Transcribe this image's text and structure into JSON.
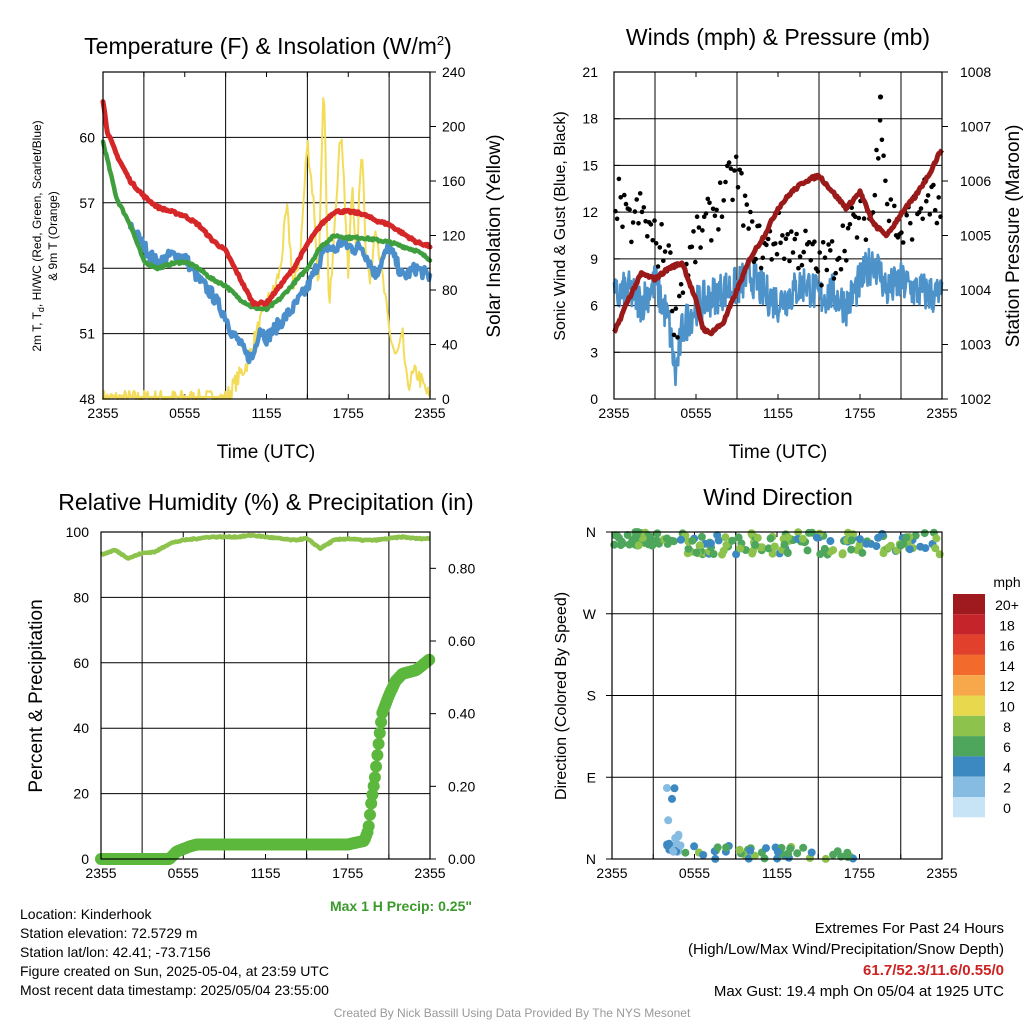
{
  "panels": {
    "temperature": {
      "title": "Temperature (F) & Insolation (W/m",
      "title_sup": "2",
      "title_close": ")",
      "ylabel_left": "2m T, T",
      "ylabel_left_sub": "d",
      "ylabel_left_rest": ", HI/WC (Red, Green, Scarlet/Blue)",
      "ylabel_left_line2": "& 9m T (Orange)",
      "ylabel_right": "Solar Insolation (Yellow)",
      "xlabel": "Time (UTC)"
    },
    "winds": {
      "title": "Winds (mph) & Pressure (mb)",
      "ylabel_left": "Sonic Wind & Gust (Blue, Black)",
      "ylabel_right": "Station Pressure (Maroon)",
      "xlabel": "Time (UTC)"
    },
    "humidity": {
      "title": "Relative Humidity (%) & Precipitation (in)",
      "ylabel_left": "Percent & Precipitation",
      "annotation": "Max 1 H Precip: 0.25\""
    },
    "direction": {
      "title": "Wind Direction",
      "ylabel_left": "Direction (Colored By Speed)",
      "legend_title": "mph",
      "legend_labels": [
        "20+",
        "18",
        "16",
        "14",
        "12",
        "10",
        "8",
        "6",
        "4",
        "2",
        "0"
      ],
      "legend_colors": [
        "#9e1a1f",
        "#c4242a",
        "#e0402c",
        "#f26a2c",
        "#f7a84a",
        "#e8d84e",
        "#8dc24c",
        "#4ea55c",
        "#3c88c0",
        "#86bbe2",
        "#c6e4f6"
      ]
    }
  },
  "info": {
    "location": "Location: Kinderhook",
    "elevation": "Station elevation: 72.5729 m",
    "latlon": "Station lat/lon: 42.41; -73.7156",
    "created": "Figure created on Sun, 2025-05-04, at 23:59 UTC",
    "recent": "Most recent data timestamp: 2025/05/04 23:55:00",
    "extremes_title": "Extremes For Past 24 Hours",
    "extremes_sub": "(High/Low/Max Wind/Precipitation/Snow Depth)",
    "extremes_values": "61.7/52.3/11.6/0.55/0",
    "max_gust": "Max Gust: 19.4 mph On 05/04 at 1925 UTC",
    "credit": "Created By Nick Bassill Using Data Provided By The NYS Mesonet"
  },
  "colors": {
    "temperature": "#d62728",
    "dewpoint": "#3f9f3f",
    "heat_index_wc": "#4a8fcb",
    "temp_9m": "#f08030",
    "insolation": "#f2dc5a",
    "wind": "#4d92c9",
    "gust": "#000000",
    "pressure": "#9a1a1a",
    "rh": "#8dc24c",
    "precip": "#5cb83c",
    "annotation": "#3a9a2a"
  },
  "chart_data": [
    {
      "type": "line",
      "title": "Temperature (F) & Insolation (W/m2)",
      "xlabel": "Time (UTC)",
      "x_ticks": [
        "2355",
        "0555",
        "1155",
        "1755",
        "2355"
      ],
      "x_range_hours": [
        0,
        24
      ],
      "ylim": [
        48,
        63
      ],
      "y_ticks": [
        48,
        51,
        54,
        57,
        60
      ],
      "y2lim": [
        0,
        240
      ],
      "y2_ticks": [
        0,
        40,
        80,
        120,
        160,
        200,
        240
      ],
      "series": [
        {
          "name": "2m T (Red)",
          "axis": "left",
          "x": [
            0,
            0.3,
            1,
            2,
            3,
            4,
            5,
            6,
            7,
            8,
            9,
            10,
            11,
            12,
            13,
            14,
            15,
            16,
            17,
            18,
            19,
            20,
            21,
            22,
            23,
            24
          ],
          "values": [
            61.7,
            60.3,
            59.2,
            58.0,
            57.3,
            56.8,
            56.6,
            56.4,
            56.0,
            55.3,
            54.8,
            53.6,
            52.4,
            52.4,
            53.2,
            54.0,
            55.1,
            56.0,
            56.6,
            56.6,
            56.5,
            56.2,
            56.0,
            55.6,
            55.2,
            55.0
          ]
        },
        {
          "name": "2m Td (Green)",
          "axis": "left",
          "x": [
            0,
            0.5,
            1,
            2,
            3,
            4,
            5,
            6,
            7,
            8,
            9,
            10,
            11,
            12,
            13,
            14,
            15,
            16,
            17,
            18,
            19,
            20,
            21,
            22,
            23,
            24
          ],
          "values": [
            59.8,
            58.5,
            57.2,
            56.0,
            54.3,
            54.0,
            54.2,
            54.3,
            54.0,
            53.5,
            53.2,
            52.6,
            52.2,
            52.1,
            52.6,
            53.3,
            54.0,
            55.0,
            55.5,
            55.4,
            55.4,
            55.3,
            55.2,
            55.0,
            54.8,
            54.4
          ]
        },
        {
          "name": "HI/WC (Blue)",
          "axis": "left",
          "x": [
            2,
            2.5,
            3,
            4,
            5,
            6,
            6.5,
            7,
            8,
            9,
            9.5,
            10,
            10.5,
            11,
            11.5,
            12,
            13,
            14,
            15,
            15.5,
            16,
            16.5,
            17,
            17.5,
            18,
            18.5,
            19,
            20,
            21,
            22,
            23,
            24
          ],
          "values": [
            56.0,
            55.5,
            55.0,
            54.2,
            54.6,
            54.5,
            54.0,
            53.5,
            52.8,
            51.8,
            51.0,
            50.6,
            50.0,
            49.9,
            51.3,
            50.8,
            51.5,
            52.2,
            53.1,
            53.8,
            54.5,
            55.0,
            54.8,
            55.2,
            55.0,
            54.9,
            55.0,
            53.7,
            55.0,
            53.6,
            54.0,
            53.6
          ]
        },
        {
          "name": "Solar Insolation (Yellow)",
          "axis": "right",
          "x": [
            0,
            9.0,
            10.5,
            11.5,
            12.0,
            12.5,
            13.0,
            13.5,
            14.0,
            14.5,
            15.0,
            15.5,
            15.8,
            16.2,
            16.6,
            17.0,
            17.5,
            18.0,
            18.3,
            18.6,
            19.0,
            19.3,
            19.6,
            20.0,
            20.5,
            21.0,
            21.5,
            22.0,
            22.3,
            23.0,
            24.0
          ],
          "values": [
            0,
            0,
            25,
            55,
            70,
            78,
            95,
            140,
            80,
            110,
            190,
            140,
            80,
            230,
            60,
            135,
            200,
            90,
            160,
            100,
            190,
            110,
            85,
            130,
            90,
            50,
            30,
            45,
            10,
            20,
            0
          ]
        }
      ]
    },
    {
      "type": "line",
      "title": "Winds (mph) & Pressure (mb)",
      "xlabel": "Time (UTC)",
      "x_ticks": [
        "2355",
        "0555",
        "1155",
        "1755",
        "2355"
      ],
      "x_range_hours": [
        0,
        24
      ],
      "ylim": [
        0,
        21
      ],
      "y_ticks": [
        0,
        3,
        6,
        9,
        12,
        15,
        18,
        21
      ],
      "y2lim": [
        1002,
        1008
      ],
      "y2_ticks": [
        1002,
        1003,
        1004,
        1005,
        1006,
        1007,
        1008
      ],
      "series": [
        {
          "name": "Sonic Wind (Blue)",
          "axis": "left",
          "x": [
            0,
            1,
            2,
            3,
            4,
            4.5,
            5,
            6,
            7,
            8,
            9,
            10,
            11,
            12,
            13,
            14,
            15,
            16,
            17,
            18,
            19,
            20,
            21,
            22,
            23,
            24
          ],
          "values": [
            6.5,
            7.0,
            6.2,
            7.5,
            5.0,
            1.5,
            4.5,
            6.0,
            6.5,
            7.0,
            7.2,
            8.0,
            6.8,
            6.2,
            6.8,
            7.5,
            6.5,
            6.8,
            6.0,
            7.5,
            9.0,
            7.0,
            7.5,
            7.0,
            6.8,
            6.5
          ]
        },
        {
          "name": "Gust (Black)",
          "axis": "left",
          "x": [
            0,
            1,
            2,
            3,
            4,
            4.5,
            5,
            6,
            7,
            8,
            9,
            10,
            11,
            12,
            13,
            14,
            15,
            16,
            17,
            18,
            19,
            19.5,
            20,
            21,
            22,
            23,
            24
          ],
          "values": [
            13.5,
            11.0,
            12.0,
            10.0,
            9.5,
            4.5,
            8.0,
            10.0,
            11.5,
            13.0,
            14.5,
            10.5,
            9.5,
            10.5,
            10.0,
            9.5,
            8.5,
            9.0,
            10.5,
            11.5,
            12.0,
            19.4,
            12.5,
            10.5,
            12.0,
            13.0,
            11.5
          ]
        },
        {
          "name": "Station Pressure (Maroon)",
          "axis": "right",
          "x": [
            0,
            0.5,
            1,
            2,
            3,
            4,
            5,
            6,
            6.5,
            7,
            8,
            9,
            10,
            11,
            12,
            13,
            14,
            15,
            16,
            17,
            18,
            19,
            20,
            21,
            22,
            23,
            24
          ],
          "values": [
            1003.2,
            1003.5,
            1003.8,
            1004.3,
            1004.2,
            1004.4,
            1004.5,
            1003.8,
            1003.3,
            1003.2,
            1003.4,
            1004.0,
            1004.6,
            1005.0,
            1005.5,
            1005.8,
            1006.0,
            1006.1,
            1005.8,
            1005.5,
            1005.8,
            1005.2,
            1005.0,
            1005.4,
            1005.7,
            1006.1,
            1006.6
          ]
        }
      ]
    },
    {
      "type": "line",
      "title": "Relative Humidity (%) & Precipitation (in)",
      "x_ticks": [
        "2355",
        "0555",
        "1155",
        "1755",
        "2355"
      ],
      "x_range_hours": [
        0,
        24
      ],
      "ylim": [
        0,
        100
      ],
      "y_ticks": [
        0,
        20,
        40,
        60,
        80,
        100
      ],
      "y2lim": [
        0,
        0.9
      ],
      "y2_ticks": [
        0.0,
        0.2,
        0.4,
        0.6,
        0.8
      ],
      "series": [
        {
          "name": "Relative Humidity",
          "axis": "left",
          "x": [
            0,
            1,
            2,
            3,
            4,
            5,
            6,
            7,
            8,
            9,
            10,
            11,
            12,
            13,
            14,
            15,
            16,
            17,
            18,
            19,
            20,
            21,
            22,
            23,
            24
          ],
          "values": [
            93.0,
            94.5,
            92.0,
            93.5,
            94.0,
            96.5,
            97.5,
            98.0,
            98.5,
            98.5,
            98.5,
            99.0,
            98.5,
            98.0,
            97.5,
            98.0,
            95.0,
            97.5,
            98.0,
            97.5,
            97.5,
            98.0,
            98.5,
            98.0,
            98.0
          ]
        },
        {
          "name": "Precipitation",
          "axis": "right",
          "x": [
            0,
            5,
            5.5,
            6.5,
            7,
            10,
            14,
            15,
            18,
            19.2,
            19.5,
            19.7,
            20.0,
            20.2,
            20.5,
            21,
            21.5,
            22,
            23,
            24
          ],
          "values": [
            0,
            0,
            0.02,
            0.035,
            0.04,
            0.04,
            0.04,
            0.04,
            0.04,
            0.05,
            0.08,
            0.15,
            0.23,
            0.3,
            0.4,
            0.45,
            0.49,
            0.51,
            0.52,
            0.55
          ]
        }
      ],
      "annotation": "Max 1 H Precip: 0.25\""
    },
    {
      "type": "scatter",
      "title": "Wind Direction",
      "ylabel": "Direction (Colored By Speed)",
      "x_ticks": [
        "2355",
        "0555",
        "1155",
        "1755",
        "2355"
      ],
      "x_range_hours": [
        0,
        24
      ],
      "y_ticks": [
        "N",
        "E",
        "S",
        "W",
        "N"
      ],
      "ylim": [
        0,
        360
      ],
      "color_scale": "speed (mph)",
      "legend": "right",
      "points_summary": [
        {
          "x": [
            0,
            4.5
          ],
          "direction": [
            345,
            360
          ],
          "speed": [
            5,
            8
          ]
        },
        {
          "x": [
            4.0,
            5.0
          ],
          "direction": [
            0,
            80
          ],
          "speed": [
            1,
            4
          ]
        },
        {
          "x": [
            5.0,
            24.0
          ],
          "direction": [
            335,
            360
          ],
          "speed": [
            4,
            9
          ]
        },
        {
          "x": [
            5.0,
            18.0
          ],
          "direction": [
            0,
            15
          ],
          "speed": [
            3,
            8
          ]
        }
      ]
    }
  ]
}
